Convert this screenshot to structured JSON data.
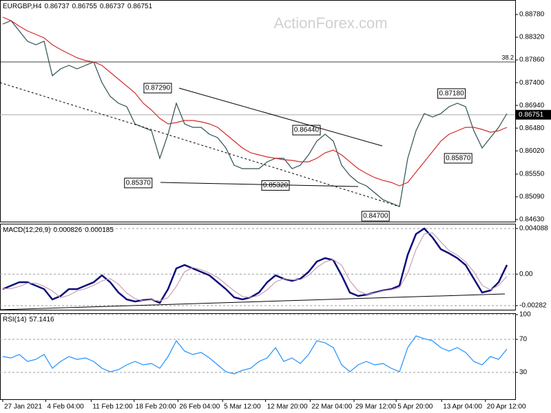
{
  "watermark": "ActionForex.com",
  "chart_data": [
    {
      "type": "line",
      "symbol": "EURGBP,H4",
      "header_values": [
        0.86737,
        0.86755,
        0.86737,
        0.86751
      ],
      "x": [
        0,
        1,
        2,
        3,
        4,
        5,
        6,
        7,
        8,
        9,
        10,
        11,
        12,
        13,
        14,
        15,
        16,
        17,
        18,
        19,
        20,
        21,
        22,
        23,
        24,
        25,
        26,
        27,
        28,
        29,
        30,
        31,
        32,
        33,
        34,
        35,
        36,
        37,
        38,
        39,
        40,
        41,
        42,
        43,
        44,
        45,
        46,
        47,
        48,
        49,
        50,
        51,
        52,
        53,
        54,
        55,
        56,
        57,
        58,
        59,
        60,
        61
      ],
      "xlim": [
        -0.33,
        62
      ],
      "ylim": [
        0.84588,
        0.89073
      ],
      "yticks": [
        {
          "value": 0.8878,
          "label": "0.88780"
        },
        {
          "value": 0.8832,
          "label": "0.88320"
        },
        {
          "value": 0.8786,
          "label": "0.87860"
        },
        {
          "value": 0.874,
          "label": "0.87400"
        },
        {
          "value": 0.8694,
          "label": "0.86940"
        },
        {
          "value": 0.8648,
          "label": "0.86480"
        },
        {
          "value": 0.8602,
          "label": "0.86020"
        },
        {
          "value": 0.8555,
          "label": "0.85550"
        },
        {
          "value": 0.8509,
          "label": "0.85090"
        },
        {
          "value": 0.8463,
          "label": "0.84630"
        }
      ],
      "grid": false,
      "series": [
        {
          "name": "Price",
          "color": "#2f4f4f",
          "values": [
            0.88585,
            0.88655,
            0.88446,
            0.88237,
            0.88168,
            0.88237,
            0.87541,
            0.8768,
            0.8775,
            0.8768,
            0.8775,
            0.87819,
            0.87401,
            0.87123,
            0.86984,
            0.86914,
            0.86566,
            0.86496,
            0.86426,
            0.85869,
            0.86357,
            0.86984,
            0.86566,
            0.86496,
            0.86496,
            0.86357,
            0.86287,
            0.86078,
            0.8573,
            0.8566,
            0.8566,
            0.8566,
            0.85799,
            0.85869,
            0.85869,
            0.8566,
            0.8573,
            0.85939,
            0.86217,
            0.86357,
            0.86217,
            0.8573,
            0.85521,
            0.85382,
            0.85312,
            0.85173,
            0.85033,
            0.84964,
            0.84894,
            0.85869,
            0.86426,
            0.86775,
            0.86705,
            0.86775,
            0.86914,
            0.86984,
            0.86914,
            0.86426,
            0.86078,
            0.86287,
            0.86496,
            0.86775
          ]
        },
        {
          "name": "MA",
          "color": "#d42a2a",
          "values": [
            0.88725,
            0.88655,
            0.88544,
            0.88446,
            0.88377,
            0.88307,
            0.88168,
            0.8807,
            0.87987,
            0.87903,
            0.87847,
            0.87819,
            0.8775,
            0.8761,
            0.87471,
            0.87332,
            0.87192,
            0.86984,
            0.86844,
            0.86677,
            0.86566,
            0.86593,
            0.86635,
            0.86635,
            0.86607,
            0.86566,
            0.86496,
            0.86357,
            0.86217,
            0.86078,
            0.85981,
            0.85939,
            0.85897,
            0.85869,
            0.85841,
            0.85827,
            0.85799,
            0.85799,
            0.85869,
            0.85981,
            0.86036,
            0.85939,
            0.85799,
            0.8566,
            0.85563,
            0.85479,
            0.85423,
            0.85382,
            0.85312,
            0.85382,
            0.85591,
            0.85799,
            0.86008,
            0.86217,
            0.86357,
            0.86426,
            0.86496,
            0.86496,
            0.86454,
            0.86398,
            0.86426,
            0.86496
          ]
        }
      ],
      "annotations": [
        {
          "value": 0.8729,
          "label": "0.87290",
          "x": 18.75
        },
        {
          "value": 0.8644,
          "label": "0.86440",
          "x": 36.75
        },
        {
          "value": 0.8718,
          "label": "0.87180",
          "x": 54.3
        },
        {
          "value": 0.8537,
          "label": "0.85370",
          "x": 16.4
        },
        {
          "value": 0.8532,
          "label": "0.85320",
          "x": 33
        },
        {
          "value": 0.8587,
          "label": "0.85870",
          "x": 55.1
        },
        {
          "value": 0.847,
          "label": "0.84700",
          "x": 45.1
        }
      ],
      "fib_label": "38.2",
      "fib_price": 0.87819,
      "last": {
        "value": 0.86751,
        "label": "0.86751"
      }
    },
    {
      "type": "line",
      "name": "MACD(12,26,9)",
      "header_values": [
        0.000826,
        0.000185
      ],
      "x": [
        0,
        1,
        2,
        3,
        4,
        5,
        6,
        7,
        8,
        9,
        10,
        11,
        12,
        13,
        14,
        15,
        16,
        17,
        18,
        19,
        20,
        21,
        22,
        23,
        24,
        25,
        26,
        27,
        28,
        29,
        30,
        31,
        32,
        33,
        34,
        35,
        36,
        37,
        38,
        39,
        40,
        41,
        42,
        43,
        44,
        45,
        46,
        47,
        48,
        49,
        50,
        51,
        52,
        53,
        54,
        55,
        56,
        57,
        58,
        59,
        60,
        61
      ],
      "xlim": [
        -0.33,
        62
      ],
      "ylim": [
        -0.00319,
        0.00452
      ],
      "yticks": [
        0.004088,
        {
          "value": 0,
          "label": "0.00"
        },
        -0.00282
      ],
      "grid": true,
      "series": [
        {
          "name": "MACD",
          "color": "#0a0a7a",
          "values": [
            -0.001338,
            -0.00103,
            -0.000722,
            -0.000722,
            -0.00103,
            -0.001338,
            -0.002264,
            -0.001955,
            -0.001338,
            -0.001338,
            -0.00103,
            -0.000722,
            -0.000105,
            -0.000722,
            -0.001647,
            -0.002264,
            -0.002449,
            -0.002326,
            -0.002264,
            -0.002572,
            -0.001338,
            0.000512,
            0.00082,
            0.000512,
            0.000204,
            -0.000105,
            -0.000722,
            -0.001338,
            -0.002079,
            -0.002264,
            -0.002079,
            -0.001647,
            -0.000722,
            -0.000105,
            -0.000413,
            -0.000598,
            -0.000413,
            0.000204,
            0.001129,
            0.001437,
            0.001252,
            -0.000105,
            -0.001647,
            -0.001955,
            -0.001832,
            -0.001647,
            -0.001462,
            -0.001338,
            -0.00103,
            0.001746,
            0.003596,
            0.004089,
            0.003288,
            0.002239,
            0.001869,
            0.001437,
            0.00082,
            -0.000413,
            -0.001647,
            -0.001462,
            -0.000722,
            0.000826
          ]
        },
        {
          "name": "Signal",
          "color": "#c8a0b0",
          "values": [
            -0.0013,
            -0.0013,
            -0.0011,
            -0.0008,
            -0.0008,
            -0.0011,
            -0.0015,
            -0.0021,
            -0.0019,
            -0.0015,
            -0.0013,
            -0.001,
            -0.0006,
            -0.0004,
            -0.0009,
            -0.0017,
            -0.0022,
            -0.0024,
            -0.0023,
            -0.0024,
            -0.0021,
            -0.0011,
            0.0002,
            0.0006,
            0.0004,
            0.0001,
            -0.0003,
            -0.0009,
            -0.0015,
            -0.002,
            -0.0021,
            -0.0019,
            -0.0014,
            -0.0007,
            -0.0004,
            -0.0005,
            -0.0005,
            -0.0001,
            0.0006,
            0.0011,
            0.0013,
            0.0008,
            -0.0006,
            -0.0015,
            -0.0018,
            -0.0017,
            -0.0015,
            -0.0014,
            -0.0012,
            0.0001,
            0.0022,
            0.0036,
            0.0037,
            0.0029,
            0.0021,
            0.0017,
            0.0011,
            0.0002,
            -0.001,
            -0.0014,
            -0.001,
            -0.0002
          ]
        }
      ]
    },
    {
      "type": "line",
      "name": "RSI(14)",
      "header_values": [
        57.1416
      ],
      "x": [
        0,
        1,
        2,
        3,
        4,
        5,
        6,
        7,
        8,
        9,
        10,
        11,
        12,
        13,
        14,
        15,
        16,
        17,
        18,
        19,
        20,
        21,
        22,
        23,
        24,
        25,
        26,
        27,
        28,
        29,
        30,
        31,
        32,
        33,
        34,
        35,
        36,
        37,
        38,
        39,
        40,
        41,
        42,
        43,
        44,
        45,
        46,
        47,
        48,
        49,
        50,
        51,
        52,
        53,
        54,
        55,
        56,
        57,
        58,
        59,
        60,
        61
      ],
      "xlim": [
        -0.33,
        62
      ],
      "ylim": [
        -2.5,
        101.7
      ],
      "yticks": [
        100,
        70,
        30
      ],
      "grid": true,
      "xticks": [
        {
          "value": 0,
          "label": "27 Jan 2021"
        },
        {
          "value": 5.2,
          "label": "4 Feb 04:00"
        },
        {
          "value": 10.7,
          "label": "11 Feb 12:00"
        },
        {
          "value": 15.9,
          "label": "18 Feb 20:00"
        },
        {
          "value": 21.2,
          "label": "26 Feb 04:00"
        },
        {
          "value": 26.6,
          "label": "5 Mar 12:00"
        },
        {
          "value": 31.8,
          "label": "12 Mar 20:00"
        },
        {
          "value": 37.2,
          "label": "22 Mar 04:00"
        },
        {
          "value": 42.5,
          "label": "29 Mar 12:00"
        },
        {
          "value": 47.6,
          "label": "5 Apr 20:00"
        },
        {
          "value": 53.1,
          "label": "13 Apr 04:00"
        },
        {
          "value": 58.4,
          "label": "20 Apr 12:00"
        }
      ],
      "series": [
        {
          "name": "RSI",
          "color": "#1e90ff",
          "values": [
            49.2,
            47.5,
            51.7,
            43.3,
            45.8,
            51.7,
            35,
            43.3,
            49.2,
            45.8,
            47.5,
            43.3,
            35,
            30.8,
            33.3,
            39.2,
            43.3,
            39.2,
            40.8,
            35,
            49.2,
            68.3,
            55.8,
            51.7,
            54.2,
            47.5,
            39.2,
            30.8,
            28.3,
            32.5,
            35,
            43.3,
            47.5,
            60,
            43.3,
            47.5,
            40.8,
            51.7,
            68.3,
            65.8,
            60,
            39.2,
            30.8,
            39.2,
            43.3,
            39.2,
            40.8,
            35,
            30.8,
            60,
            74.2,
            70.8,
            68.3,
            60,
            55.8,
            60,
            54.2,
            43.3,
            39.2,
            49.2,
            45.8,
            58.3
          ]
        }
      ]
    }
  ]
}
